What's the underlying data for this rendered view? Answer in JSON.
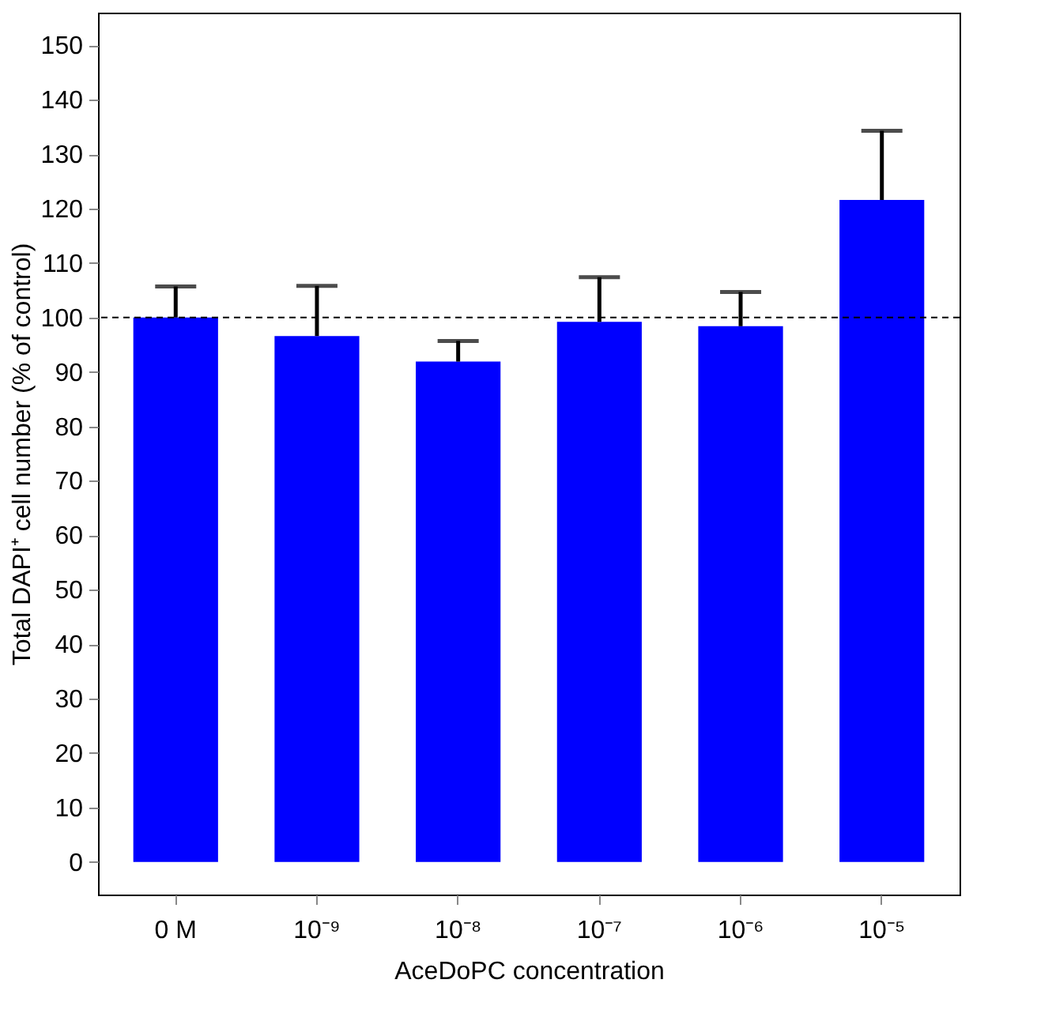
{
  "chart_data": {
    "type": "bar",
    "xlabel": "AceDoPC concentration",
    "ylabel": "Total DAPI⁺ cell number (% of control)",
    "categories": [
      "0 M",
      "10⁻⁹",
      "10⁻⁸",
      "10⁻⁷",
      "10⁻⁶",
      "10⁻⁵"
    ],
    "values": [
      100,
      96.6,
      91.9,
      99.2,
      98.4,
      121.6
    ],
    "errors": [
      [
        100,
        105.7
      ],
      [
        96.6,
        105.8
      ],
      [
        91.9,
        95.7
      ],
      [
        99.2,
        107.4
      ],
      [
        98.4,
        104.7
      ],
      [
        121.6,
        134.3
      ]
    ],
    "color": "#0000ff",
    "ylim": [
      -6,
      156
    ],
    "yticks": [
      0,
      10,
      20,
      30,
      40,
      50,
      60,
      70,
      80,
      90,
      100,
      110,
      120,
      130,
      140,
      150
    ],
    "ref_lines": [
      {
        "axis": "y",
        "value": 100,
        "label": null,
        "color": "#000000",
        "line_style": "dashed"
      }
    ],
    "grid": false
  }
}
